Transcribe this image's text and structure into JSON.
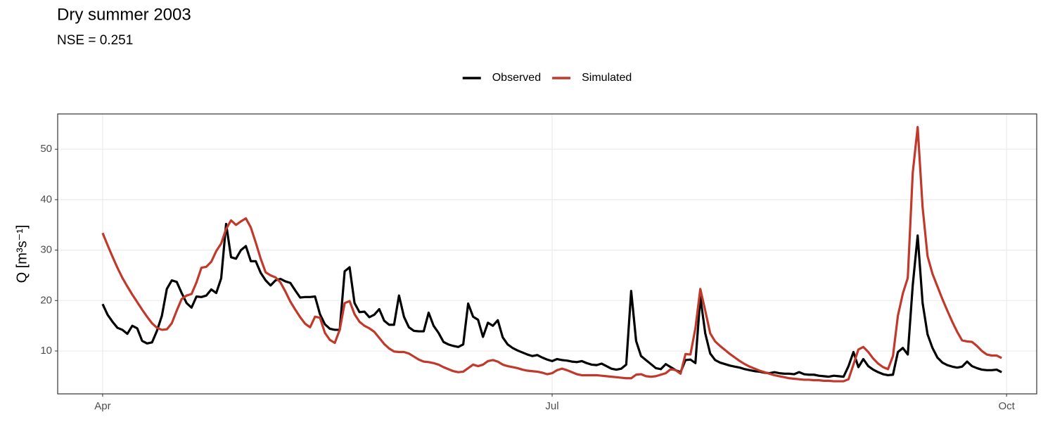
{
  "chart_data": {
    "type": "line",
    "title": "Dry summer 2003",
    "subtitle": "NSE = 0.251",
    "y_label": "Q [m³s⁻¹]",
    "x": [
      0,
      1,
      2,
      3,
      4,
      5,
      6,
      7,
      8,
      9,
      10,
      11,
      12,
      13,
      14,
      15,
      16,
      17,
      18,
      19,
      20,
      21,
      22,
      23,
      24,
      25,
      26,
      27,
      28,
      29,
      30,
      31,
      32,
      33,
      34,
      35,
      36,
      37,
      38,
      39,
      40,
      41,
      42,
      43,
      44,
      45,
      46,
      47,
      48,
      49,
      50,
      51,
      52,
      53,
      54,
      55,
      56,
      57,
      58,
      59,
      60,
      61,
      62,
      63,
      64,
      65,
      66,
      67,
      68,
      69,
      70,
      71,
      72,
      73,
      74,
      75,
      76,
      77,
      78,
      79,
      80,
      81,
      82,
      83,
      84,
      85,
      86,
      87,
      88,
      89,
      90,
      91,
      92,
      93,
      94,
      95,
      96,
      97,
      98,
      99,
      100,
      101,
      102,
      103,
      104,
      105,
      106,
      107,
      108,
      109,
      110,
      111,
      112,
      113,
      114,
      115,
      116,
      117,
      118,
      119,
      120,
      121,
      122,
      123,
      124,
      125,
      126,
      127,
      128,
      129,
      130,
      131,
      132,
      133,
      134,
      135,
      136,
      137,
      138,
      139,
      140,
      141,
      142,
      143,
      144,
      145,
      146,
      147,
      148,
      149,
      150,
      151,
      152,
      153,
      154,
      155,
      156,
      157,
      158,
      159,
      160,
      161,
      162,
      163,
      164,
      165,
      166,
      167,
      168,
      169,
      170,
      171,
      172,
      173,
      174,
      175,
      176,
      177,
      178,
      179,
      180,
      181,
      182
    ],
    "series": [
      {
        "name": "Observed",
        "color": "#000000",
        "values": [
          19.3,
          17.2,
          15.8,
          14.6,
          14.2,
          13.4,
          15.0,
          14.5,
          12.0,
          11.5,
          11.7,
          14.0,
          17.0,
          22.3,
          24.0,
          23.7,
          21.5,
          19.5,
          18.6,
          20.8,
          20.7,
          21.0,
          22.2,
          21.5,
          24.4,
          35.2,
          28.6,
          28.3,
          30.0,
          30.8,
          27.8,
          27.8,
          25.5,
          24.0,
          23.0,
          24.0,
          24.3,
          23.8,
          23.5,
          22.0,
          20.6,
          20.7,
          20.7,
          20.8,
          17.3,
          15.3,
          14.4,
          14.2,
          14.2,
          25.8,
          26.6,
          19.5,
          17.7,
          17.8,
          16.7,
          17.2,
          18.3,
          16.0,
          15.2,
          15.2,
          21.0,
          16.8,
          14.7,
          14.0,
          13.9,
          13.9,
          17.6,
          15.0,
          13.6,
          11.8,
          11.3,
          11.0,
          10.8,
          11.3,
          19.4,
          16.8,
          16.2,
          12.8,
          15.6,
          15.0,
          16.1,
          12.7,
          11.3,
          10.6,
          10.1,
          9.7,
          9.3,
          9.0,
          9.2,
          8.7,
          8.3,
          8.0,
          8.4,
          8.2,
          8.1,
          7.9,
          7.8,
          8.0,
          7.6,
          7.3,
          7.2,
          7.5,
          7.0,
          6.5,
          6.3,
          6.5,
          7.3,
          21.9,
          12.0,
          9.0,
          8.2,
          7.4,
          6.6,
          6.4,
          7.4,
          6.8,
          6.2,
          5.8,
          8.2,
          8.3,
          7.6,
          20.7,
          13.5,
          9.5,
          8.2,
          7.7,
          7.4,
          7.1,
          6.9,
          6.7,
          6.4,
          6.2,
          6.0,
          5.9,
          5.7,
          5.6,
          5.8,
          5.6,
          5.5,
          5.5,
          5.4,
          5.8,
          5.4,
          5.3,
          5.3,
          5.1,
          5.0,
          4.9,
          5.1,
          5.0,
          4.9,
          7.0,
          9.8,
          6.8,
          8.4,
          7.0,
          6.3,
          5.8,
          5.4,
          5.2,
          5.3,
          9.8,
          10.6,
          9.3,
          23.0,
          32.9,
          19.5,
          13.3,
          10.6,
          8.7,
          7.7,
          7.2,
          6.9,
          6.7,
          6.9,
          7.9,
          7.0,
          6.6,
          6.3,
          6.2,
          6.2,
          6.3,
          5.8
        ]
      },
      {
        "name": "Simulated",
        "color": "#c0392b",
        "values": [
          33.4,
          31.0,
          28.7,
          26.5,
          24.5,
          22.8,
          21.2,
          19.7,
          18.2,
          16.8,
          15.5,
          14.6,
          14.2,
          14.3,
          15.5,
          18.0,
          20.3,
          21.0,
          21.3,
          23.6,
          26.5,
          26.7,
          27.7,
          29.8,
          31.3,
          34.2,
          35.9,
          35.0,
          35.7,
          36.3,
          34.5,
          31.5,
          28.3,
          25.6,
          25.0,
          24.6,
          23.6,
          21.8,
          19.8,
          18.2,
          16.7,
          15.4,
          14.7,
          16.8,
          16.6,
          13.6,
          12.2,
          11.6,
          14.2,
          19.5,
          19.9,
          17.3,
          15.8,
          15.0,
          14.5,
          13.8,
          12.6,
          11.4,
          10.5,
          9.9,
          9.8,
          9.8,
          9.5,
          8.9,
          8.3,
          7.9,
          7.8,
          7.6,
          7.3,
          6.8,
          6.4,
          6.0,
          5.8,
          5.9,
          6.6,
          7.3,
          7.0,
          7.3,
          8.0,
          8.2,
          7.9,
          7.3,
          7.0,
          6.8,
          6.6,
          6.3,
          6.1,
          6.0,
          5.9,
          5.7,
          5.4,
          5.6,
          6.2,
          6.5,
          6.2,
          5.8,
          5.4,
          5.2,
          5.2,
          5.2,
          5.2,
          5.1,
          5.0,
          4.9,
          4.8,
          4.7,
          4.6,
          4.6,
          5.3,
          5.4,
          5.0,
          4.9,
          5.0,
          5.3,
          5.6,
          6.4,
          6.2,
          5.5,
          9.4,
          9.3,
          14.5,
          22.3,
          18.0,
          13.5,
          11.9,
          11.0,
          10.2,
          9.4,
          8.7,
          8.0,
          7.4,
          6.9,
          6.5,
          6.1,
          5.8,
          5.5,
          5.2,
          5.0,
          4.8,
          4.6,
          4.5,
          4.4,
          4.3,
          4.3,
          4.2,
          4.2,
          4.1,
          4.1,
          4.0,
          4.0,
          4.0,
          4.4,
          7.3,
          10.3,
          10.8,
          9.8,
          8.5,
          7.5,
          6.8,
          6.4,
          9.0,
          17.0,
          21.4,
          24.5,
          45.3,
          54.4,
          38.5,
          28.8,
          25.3,
          22.8,
          20.3,
          18.0,
          15.8,
          13.8,
          12.1,
          11.9,
          11.8,
          11.0,
          10.0,
          9.3,
          9.1,
          9.1,
          8.6
        ]
      }
    ],
    "xlim": [
      -9.1,
      189.1
    ],
    "xticks": [
      {
        "value": 0,
        "label": "Apr"
      },
      {
        "value": 91,
        "label": "Jul"
      },
      {
        "value": 183,
        "label": "Oct"
      }
    ],
    "ylim": [
      1.5,
      57.0
    ],
    "yticks": [
      10,
      20,
      30,
      40,
      50
    ],
    "grid": true,
    "legend": "top"
  }
}
